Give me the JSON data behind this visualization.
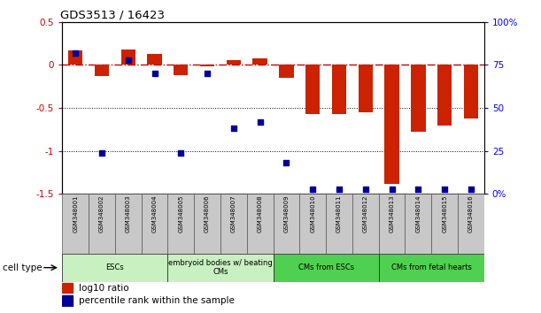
{
  "title": "GDS3513 / 16423",
  "samples": [
    "GSM348001",
    "GSM348002",
    "GSM348003",
    "GSM348004",
    "GSM348005",
    "GSM348006",
    "GSM348007",
    "GSM348008",
    "GSM348009",
    "GSM348010",
    "GSM348011",
    "GSM348012",
    "GSM348013",
    "GSM348014",
    "GSM348015",
    "GSM348016"
  ],
  "log10_ratio": [
    0.17,
    -0.13,
    0.18,
    0.13,
    -0.12,
    -0.02,
    0.06,
    0.08,
    -0.15,
    -0.57,
    -0.57,
    -0.55,
    -1.38,
    -0.78,
    -0.7,
    -0.62
  ],
  "percentile_rank": [
    82,
    24,
    78,
    70,
    24,
    70,
    38,
    42,
    18,
    3,
    3,
    3,
    3,
    3,
    3,
    3
  ],
  "bar_color": "#CC2200",
  "dot_color": "#000099",
  "ylim_left": [
    -1.5,
    0.5
  ],
  "ylim_right": [
    0,
    100
  ],
  "dotted_lines": [
    -0.5,
    -1.0
  ],
  "ct_data": [
    {
      "start": 0,
      "end": 4,
      "color": "#c8f0c0",
      "label": "ESCs"
    },
    {
      "start": 4,
      "end": 8,
      "color": "#c8f0c0",
      "label": "embryoid bodies w/ beating\nCMs"
    },
    {
      "start": 8,
      "end": 12,
      "color": "#50d050",
      "label": "CMs from ESCs"
    },
    {
      "start": 12,
      "end": 16,
      "color": "#50d050",
      "label": "CMs from fetal hearts"
    }
  ],
  "sample_box_color": "#c8c8c8",
  "left_yticks": [
    -1.5,
    -1.0,
    -0.5,
    0.0,
    0.5
  ],
  "left_yticklabels": [
    "-1.5",
    "-1",
    "-0.5",
    "0",
    "0.5"
  ],
  "right_yticks": [
    0,
    25,
    50,
    75,
    100
  ],
  "right_yticklabels": [
    "0%",
    "25",
    "50",
    "75",
    "100%"
  ]
}
